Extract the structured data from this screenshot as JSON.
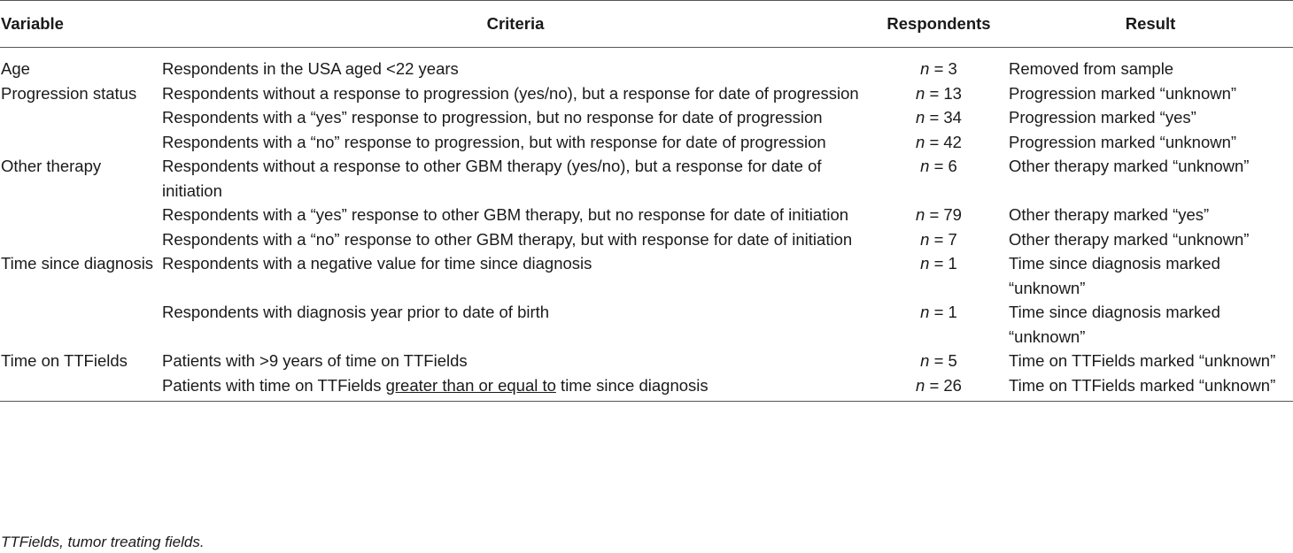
{
  "headers": {
    "variable": "Variable",
    "criteria": "Criteria",
    "respondents": "Respondents",
    "result": "Result"
  },
  "rows": [
    {
      "variable": "Age",
      "criteria": "Respondents in the USA aged <22 years",
      "n_label": "n",
      "n_value": " = 3",
      "result": "Removed from sample"
    },
    {
      "variable": "Progression status",
      "criteria": "Respondents without a response to progression (yes/no), but a response for date of progression",
      "n_label": "n",
      "n_value": " = 13",
      "result": "Progression marked “unknown”"
    },
    {
      "variable": "",
      "criteria": "Respondents with a “yes” response to progression, but no response for date of progression",
      "n_label": "n",
      "n_value": " = 34",
      "result": "Progression marked “yes”"
    },
    {
      "variable": "",
      "criteria": "Respondents with a “no” response to progression, but with response for date of progression",
      "n_label": "n",
      "n_value": " = 42",
      "result": "Progression marked “unknown”"
    },
    {
      "variable": "Other therapy",
      "criteria": "Respondents without a response to other GBM therapy (yes/no), but a response for date of initiation",
      "n_label": "n",
      "n_value": " = 6",
      "result": "Other therapy marked “unknown”"
    },
    {
      "variable": "",
      "criteria": "Respondents with a “yes” response to other GBM therapy, but no response for date of initiation",
      "n_label": "n",
      "n_value": " = 79",
      "result": "Other therapy marked “yes”"
    },
    {
      "variable": "",
      "criteria": "Respondents with a “no” response to other GBM therapy, but with response for date of initiation",
      "n_label": "n",
      "n_value": " = 7",
      "result": "Other therapy marked “unknown”"
    },
    {
      "variable": "Time since diagnosis",
      "criteria": "Respondents with a negative value for time since diagnosis",
      "n_label": "n",
      "n_value": " = 1",
      "result": "Time since diagnosis marked “unknown”"
    },
    {
      "variable": "",
      "criteria": "Respondents with diagnosis year prior to date of birth",
      "n_label": "n",
      "n_value": " = 1",
      "result": "Time since diagnosis marked “unknown”"
    },
    {
      "variable": "Time on TTFields",
      "criteria": "Patients with >9 years of time on TTFields",
      "n_label": "n",
      "n_value": " = 5",
      "result": "Time on TTFields marked “unknown”"
    },
    {
      "variable": "",
      "criteria_pre": "Patients with time on TTFields ",
      "criteria_ul": "greater than or equal to",
      "criteria_post": " time since diagnosis",
      "n_label": "n",
      "n_value": " = 26",
      "result": "Time on TTFields marked “unknown”"
    }
  ],
  "footnote": "TTFields, tumor treating fields."
}
